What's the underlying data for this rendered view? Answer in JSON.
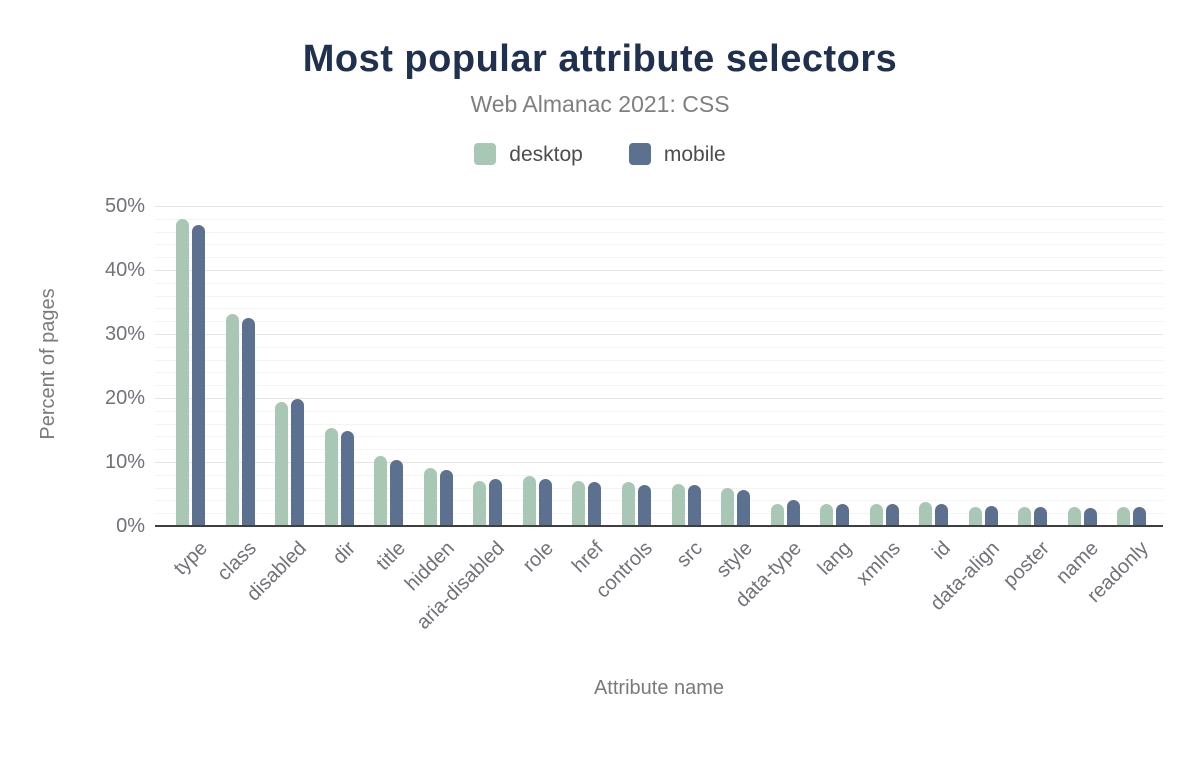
{
  "header": {
    "title": "Most popular attribute selectors",
    "subtitle": "Web Almanac 2021: CSS"
  },
  "legend": {
    "items": [
      {
        "series": "desktop",
        "label": "desktop"
      },
      {
        "series": "mobile",
        "label": "mobile"
      }
    ]
  },
  "colors": {
    "desktop": "#a8c8b5",
    "mobile": "#5c7090",
    "title": "#203150",
    "subtitle": "#7f7f7f",
    "axis_text": "#717179",
    "legend_text": "#4d4d4d",
    "gridline_minor": "#f3f3f3",
    "gridline_major": "#e4e4e4",
    "axis_line": "#3f3f3f"
  },
  "chart_data": {
    "type": "bar",
    "title": "Most popular attribute selectors",
    "subtitle": "Web Almanac 2021: CSS",
    "xlabel": "Attribute name",
    "ylabel": "Percent of pages",
    "ylim": [
      0,
      50
    ],
    "yticks": [
      {
        "label": "0%",
        "value": 0
      },
      {
        "label": "10%",
        "value": 10
      },
      {
        "label": "20%",
        "value": 20
      },
      {
        "label": "30%",
        "value": 30
      },
      {
        "label": "40%",
        "value": 40
      },
      {
        "label": "50%",
        "value": 50
      }
    ],
    "minor_gridline_step": 2,
    "major_gridline_step": 10,
    "grid": true,
    "legend_position": "top",
    "categories": [
      "type",
      "class",
      "disabled",
      "dir",
      "title",
      "hidden",
      "aria-disabled",
      "role",
      "href",
      "controls",
      "src",
      "style",
      "data-type",
      "lang",
      "xmlns",
      "id",
      "data-align",
      "poster",
      "name",
      "readonly"
    ],
    "series": [
      {
        "name": "desktop",
        "values": [
          48.0,
          33.1,
          19.4,
          15.3,
          11.0,
          9.0,
          7.1,
          7.8,
          7.1,
          6.8,
          6.6,
          5.9,
          3.4,
          3.5,
          3.4,
          3.8,
          2.9,
          2.9,
          3.0,
          2.9
        ]
      },
      {
        "name": "mobile",
        "values": [
          47.0,
          32.5,
          19.9,
          14.9,
          10.3,
          8.7,
          7.3,
          7.3,
          6.8,
          6.4,
          6.4,
          5.6,
          4.1,
          3.4,
          3.5,
          3.4,
          3.1,
          2.9,
          2.8,
          3.0
        ]
      }
    ]
  }
}
